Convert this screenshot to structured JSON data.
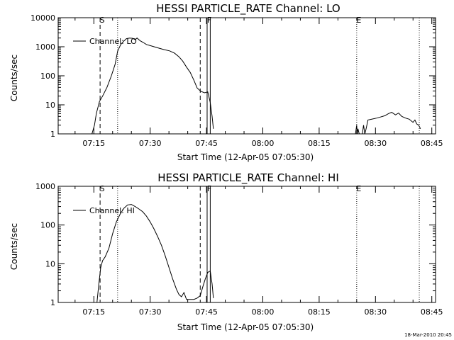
{
  "footer": {
    "timestamp": "18-Mar-2010 20:45"
  },
  "chart_data": [
    {
      "type": "line",
      "title": "HESSI PARTICLE_RATE Channel: LO",
      "xlabel": "Start Time (12-Apr-05 07:05:30)",
      "ylabel": "Counts/sec",
      "yscale": "log",
      "xlim": [
        "07:05:30",
        "08:46:00"
      ],
      "ylim": [
        1,
        10000
      ],
      "x_ticks": [
        "07:15",
        "07:30",
        "07:45",
        "08:00",
        "08:15",
        "08:30",
        "08:45"
      ],
      "y_ticks": [
        "1",
        "10",
        "100",
        "1000",
        "10000"
      ],
      "legend": {
        "placement": "top-left",
        "entries": [
          "Channel: LO"
        ]
      },
      "markers": [
        {
          "label": "S",
          "time": "07:16:40",
          "style": "dashed"
        },
        {
          "label": "",
          "time": "07:21:20",
          "style": "dotted"
        },
        {
          "label": "",
          "time": "07:43:20",
          "style": "dashed"
        },
        {
          "label": "F",
          "time": "07:45:10",
          "style": "solid"
        },
        {
          "label": "",
          "time": "07:46:00",
          "style": "solid"
        },
        {
          "label": "E",
          "time": "08:25:00",
          "style": "dotted"
        },
        {
          "label": "",
          "time": "08:41:40",
          "style": "dotted"
        }
      ],
      "series": [
        {
          "name": "Channel: LO",
          "segments": [
            {
              "x": [
                "07:14:30",
                "07:15:10",
                "07:15:40",
                "07:16:30",
                "07:17:20",
                "07:18:30",
                "07:19:40",
                "07:20:40",
                "07:21:20",
                "07:22:10",
                "07:22:50",
                "07:23:40",
                "07:24:30",
                "07:25:20",
                "07:26:00",
                "07:26:30",
                "07:27:20",
                "07:28:10",
                "07:29:00",
                "07:30:30",
                "07:32:00",
                "07:33:40",
                "07:35:10",
                "07:36:30",
                "07:37:40",
                "07:38:40",
                "07:39:40",
                "07:40:40",
                "07:41:40",
                "07:42:30",
                "07:43:30",
                "07:44:30",
                "07:45:20",
                "07:46:00",
                "07:46:30",
                "07:46:50"
              ],
              "y": [
                1,
                2,
                5,
                13,
                20,
                40,
                100,
                250,
                700,
                1200,
                1500,
                1900,
                2000,
                1950,
                1750,
                2000,
                1600,
                1400,
                1200,
                1050,
                920,
                800,
                720,
                600,
                450,
                320,
                200,
                130,
                70,
                38,
                29,
                26,
                28,
                12,
                4,
                1.5
              ]
            },
            {
              "x": [
                "08:24:40",
                "08:25:00",
                "08:25:10",
                "08:25:20",
                "08:25:40",
                "08:26:30",
                "08:26:50",
                "08:27:10",
                "08:27:30",
                "08:28:00",
                "08:29:00",
                "08:30:20",
                "08:31:20",
                "08:32:30",
                "08:33:30",
                "08:34:20",
                "08:35:20",
                "08:36:10",
                "08:37:00",
                "08:38:00",
                "08:39:00",
                "08:40:00",
                "08:40:30",
                "08:41:00",
                "08:41:30",
                "08:42:00"
              ],
              "y": [
                1,
                2,
                1,
                1.5,
                1,
                1,
                2,
                1,
                1.5,
                3,
                3.2,
                3.5,
                3.8,
                4.2,
                5,
                5.5,
                4.5,
                5.2,
                4,
                3.5,
                3.2,
                2.5,
                3,
                2.2,
                2,
                1.5
              ]
            }
          ]
        }
      ]
    },
    {
      "type": "line",
      "title": "HESSI PARTICLE_RATE Channel: HI",
      "xlabel": "Start Time (12-Apr-05 07:05:30)",
      "ylabel": "Counts/sec",
      "yscale": "log",
      "xlim": [
        "07:05:30",
        "08:46:00"
      ],
      "ylim": [
        1,
        1000
      ],
      "x_ticks": [
        "07:15",
        "07:30",
        "07:45",
        "08:00",
        "08:15",
        "08:30",
        "08:45"
      ],
      "y_ticks": [
        "1",
        "10",
        "100",
        "1000"
      ],
      "legend": {
        "placement": "top-left",
        "entries": [
          "Channel: HI"
        ]
      },
      "markers": [
        {
          "label": "S",
          "time": "07:16:40",
          "style": "dashed"
        },
        {
          "label": "",
          "time": "07:21:20",
          "style": "dotted"
        },
        {
          "label": "",
          "time": "07:43:20",
          "style": "dashed"
        },
        {
          "label": "F",
          "time": "07:45:10",
          "style": "solid"
        },
        {
          "label": "",
          "time": "07:46:00",
          "style": "solid"
        },
        {
          "label": "E",
          "time": "08:25:00",
          "style": "dotted"
        },
        {
          "label": "",
          "time": "08:41:40",
          "style": "dotted"
        }
      ],
      "series": [
        {
          "name": "Channel: HI",
          "segments": [
            {
              "x": [
                "07:15:50",
                "07:16:20",
                "07:16:50",
                "07:17:20",
                "07:18:00",
                "07:19:00",
                "07:20:00",
                "07:21:00",
                "07:22:00",
                "07:23:00",
                "07:24:00",
                "07:25:00",
                "07:26:00",
                "07:27:00",
                "07:28:00",
                "07:29:00",
                "07:30:00",
                "07:31:00",
                "07:32:00",
                "07:33:00",
                "07:34:00",
                "07:35:00",
                "07:36:00",
                "07:37:00",
                "07:37:40",
                "07:38:20",
                "07:39:00",
                "07:39:40",
                "07:40:20",
                "07:41:00",
                "07:41:40",
                "07:42:30",
                "07:43:20",
                "07:44:00",
                "07:44:40",
                "07:45:20",
                "07:46:00",
                "07:46:30",
                "07:46:50"
              ],
              "y": [
                1,
                3,
                8,
                12,
                15,
                25,
                60,
                120,
                190,
                270,
                330,
                340,
                300,
                260,
                220,
                170,
                120,
                80,
                50,
                30,
                16,
                8,
                4,
                2.2,
                1.6,
                1.4,
                1.8,
                1.2,
                1.2,
                1.2,
                1.2,
                1.3,
                1.5,
                2.5,
                4,
                6,
                6.5,
                3,
                1.3
              ]
            }
          ]
        }
      ]
    }
  ]
}
